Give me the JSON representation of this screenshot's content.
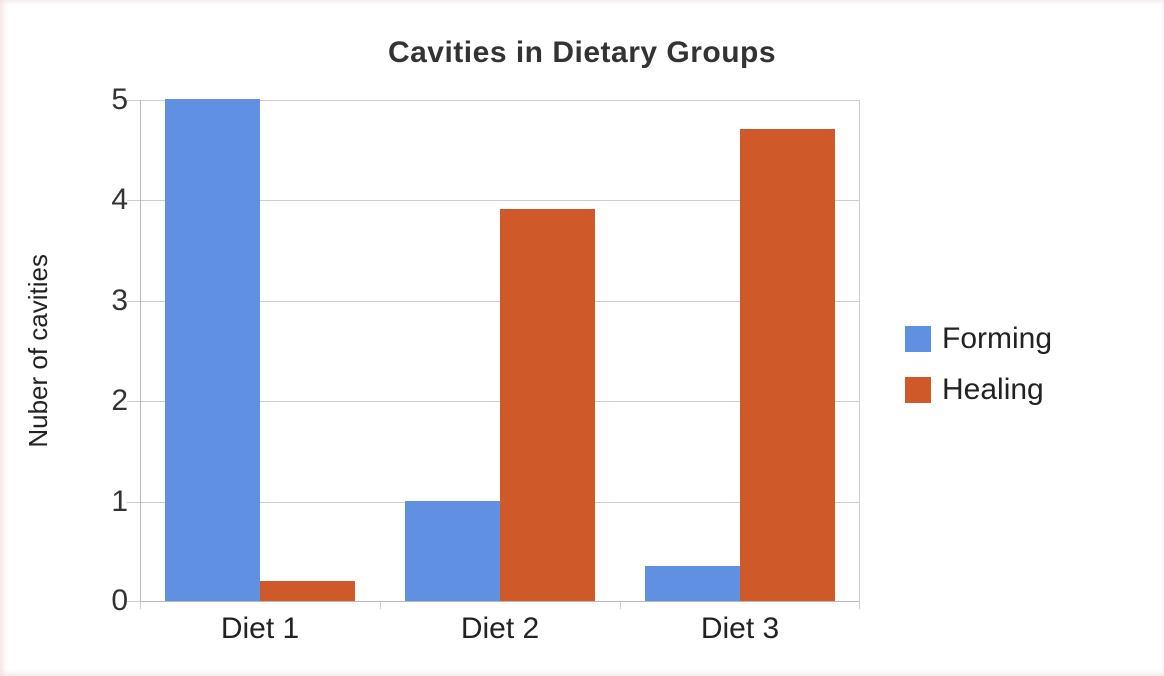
{
  "chart_data": {
    "type": "bar",
    "title": "Cavities in Dietary Groups",
    "xlabel": "",
    "ylabel": "Nuber of cavities",
    "categories": [
      "Diet 1",
      "Diet 2",
      "Diet 3"
    ],
    "series": [
      {
        "name": "Forming",
        "color": "#5f90e2",
        "values": [
          5.0,
          1.0,
          0.35
        ]
      },
      {
        "name": "Healing",
        "color": "#d0592a",
        "values": [
          0.2,
          3.9,
          4.7
        ]
      }
    ],
    "ylim": [
      0,
      5
    ],
    "yticks": [
      0,
      1,
      2,
      3,
      4,
      5
    ],
    "grid": true,
    "legend_position": "right",
    "grid_color": "#cccccc",
    "axis_color": "#b9b9b9",
    "text_color": "#333333",
    "background_color": "#ffffff"
  }
}
